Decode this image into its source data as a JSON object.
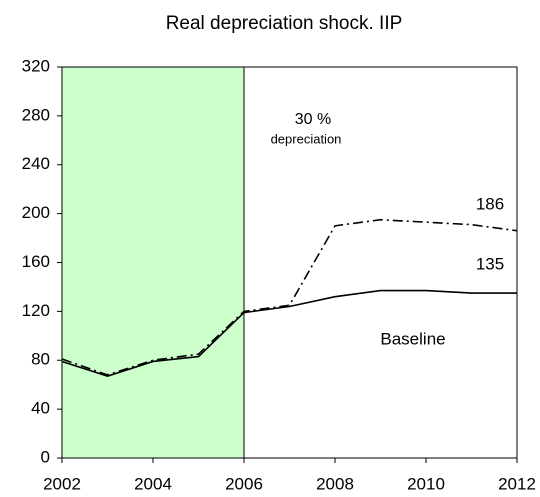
{
  "chart_data": {
    "type": "line",
    "title": "Real depreciation shock. IIP",
    "x": [
      2002,
      2003,
      2004,
      2005,
      2006,
      2007,
      2008,
      2009,
      2010,
      2011,
      2012
    ],
    "series": [
      {
        "color": "#000000",
        "dash": "solid",
        "values": [
          79,
          67,
          79,
          83,
          119,
          124,
          132,
          137,
          137,
          135,
          135
        ]
      },
      {
        "color": "#000000",
        "dash": "dashdot",
        "values": [
          81,
          68,
          80,
          85,
          120,
          125,
          190,
          195,
          193,
          191,
          186
        ]
      }
    ],
    "shade": {
      "from": 2002,
      "to": 2006,
      "color": "#ccffcc"
    },
    "annotations": [
      "30 %",
      "depreciation",
      "186",
      "135",
      "Baseline"
    ],
    "xlim": [
      2002,
      2012
    ],
    "xticks": [
      2002,
      2004,
      2006,
      2008,
      2010,
      2012
    ],
    "ylim": [
      0,
      320
    ],
    "yticks": [
      0,
      40,
      80,
      120,
      160,
      200,
      240,
      280,
      320
    ],
    "grid": false
  }
}
